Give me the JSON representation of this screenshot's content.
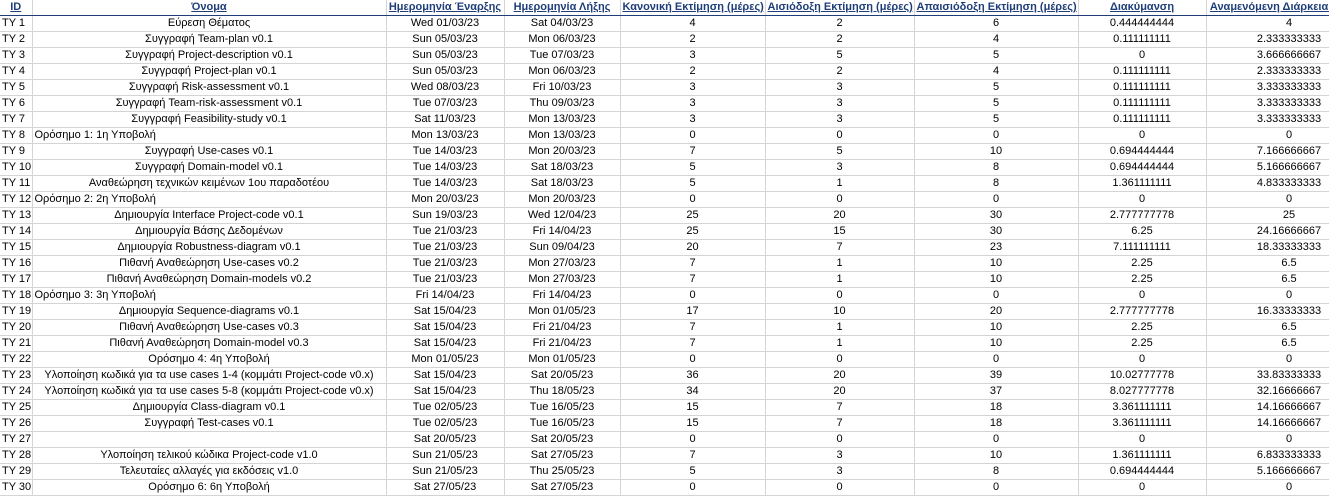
{
  "columns": [
    "ID",
    "Όνομα",
    "Ημερομηνία Έναρξης",
    "Ημερομηνία Λήξης",
    "Κανονική Εκτίμηση (μέρες)",
    "Αισιόδοξη Εκτίμηση (μέρες)",
    "Απαισιόδοξη Εκτίμηση (μέρες)",
    "Διακύμανση",
    "Αναμενόμενη Διάρκεια (μέρες)"
  ],
  "rows": [
    {
      "id": "TY 1",
      "name": "Εύρεση Θέματος",
      "start": "Wed 01/03/23",
      "end": "Sat 04/03/23",
      "normal": "4",
      "optimistic": "2",
      "pessimistic": "6",
      "variance": "0.444444444",
      "expected": "4"
    },
    {
      "id": "TY 2",
      "name": "Συγγραφή Team-plan v0.1",
      "start": "Sun 05/03/23",
      "end": "Mon 06/03/23",
      "normal": "2",
      "optimistic": "2",
      "pessimistic": "4",
      "variance": "0.111111111",
      "expected": "2.333333333"
    },
    {
      "id": "TY 3",
      "name": "Συγγραφή Project-description v0.1",
      "start": "Sun 05/03/23",
      "end": "Tue 07/03/23",
      "normal": "3",
      "optimistic": "5",
      "pessimistic": "5",
      "variance": "0",
      "expected": "3.666666667"
    },
    {
      "id": "TY 4",
      "name": "Συγγραφή Project-plan v0.1",
      "start": "Sun 05/03/23",
      "end": "Mon 06/03/23",
      "normal": "2",
      "optimistic": "2",
      "pessimistic": "4",
      "variance": "0.111111111",
      "expected": "2.333333333"
    },
    {
      "id": "TY 5",
      "name": "Συγγραφή Risk-assessment v0.1",
      "start": "Wed 08/03/23",
      "end": "Fri 10/03/23",
      "normal": "3",
      "optimistic": "3",
      "pessimistic": "5",
      "variance": "0.111111111",
      "expected": "3.333333333"
    },
    {
      "id": "TY 6",
      "name": "Συγγραφή Team-risk-assessment v0.1",
      "start": "Tue 07/03/23",
      "end": "Thu 09/03/23",
      "normal": "3",
      "optimistic": "3",
      "pessimistic": "5",
      "variance": "0.111111111",
      "expected": "3.333333333"
    },
    {
      "id": "TY 7",
      "name": "Συγγραφή Feasibility-study v0.1",
      "start": "Sat 11/03/23",
      "end": "Mon 13/03/23",
      "normal": "3",
      "optimistic": "3",
      "pessimistic": "5",
      "variance": "0.111111111",
      "expected": "3.333333333"
    },
    {
      "id": "TY 8",
      "name": "Ορόσημο 1: 1η Υποβολή",
      "start": "Mon 13/03/23",
      "end": "Mon 13/03/23",
      "normal": "0",
      "optimistic": "0",
      "pessimistic": "0",
      "variance": "0",
      "expected": "0",
      "align": "left"
    },
    {
      "id": "TY 9",
      "name": "Συγγραφή Use-cases v0.1",
      "start": "Tue 14/03/23",
      "end": "Mon 20/03/23",
      "normal": "7",
      "optimistic": "5",
      "pessimistic": "10",
      "variance": "0.694444444",
      "expected": "7.166666667"
    },
    {
      "id": "TY 10",
      "name": "Συγγραφή Domain-model v0.1",
      "start": "Tue 14/03/23",
      "end": "Sat 18/03/23",
      "normal": "5",
      "optimistic": "3",
      "pessimistic": "8",
      "variance": "0.694444444",
      "expected": "5.166666667"
    },
    {
      "id": "TY 11",
      "name": "Αναθεώρηση τεχνικών κειμένων 1ου παραδοτέου",
      "start": "Tue 14/03/23",
      "end": "Sat 18/03/23",
      "normal": "5",
      "optimistic": "1",
      "pessimistic": "8",
      "variance": "1.361111111",
      "expected": "4.833333333"
    },
    {
      "id": "TY 12",
      "name": "Ορόσημο 2: 2η Υποβολή",
      "start": "Mon 20/03/23",
      "end": "Mon 20/03/23",
      "normal": "0",
      "optimistic": "0",
      "pessimistic": "0",
      "variance": "0",
      "expected": "0",
      "align": "left"
    },
    {
      "id": "TY 13",
      "name": "Δημιουργία Interface Project-code v0.1",
      "start": "Sun 19/03/23",
      "end": "Wed 12/04/23",
      "normal": "25",
      "optimistic": "20",
      "pessimistic": "30",
      "variance": "2.777777778",
      "expected": "25"
    },
    {
      "id": "TY 14",
      "name": "Δημιουργία Βάσης Δεδομένων",
      "start": "Tue 21/03/23",
      "end": "Fri 14/04/23",
      "normal": "25",
      "optimistic": "15",
      "pessimistic": "30",
      "variance": "6.25",
      "expected": "24.16666667"
    },
    {
      "id": "TY 15",
      "name": "Δημιουργία Robustness-diagram v0.1",
      "start": "Tue 21/03/23",
      "end": "Sun 09/04/23",
      "normal": "20",
      "optimistic": "7",
      "pessimistic": "23",
      "variance": "7.111111111",
      "expected": "18.33333333"
    },
    {
      "id": "TY 16",
      "name": "Πιθανή Αναθεώρηση Use-cases v0.2",
      "start": "Tue 21/03/23",
      "end": "Mon 27/03/23",
      "normal": "7",
      "optimistic": "1",
      "pessimistic": "10",
      "variance": "2.25",
      "expected": "6.5"
    },
    {
      "id": "TY 17",
      "name": "Πιθανή Αναθεώρηση Domain-models v0.2",
      "start": "Tue 21/03/23",
      "end": "Mon 27/03/23",
      "normal": "7",
      "optimistic": "1",
      "pessimistic": "10",
      "variance": "2.25",
      "expected": "6.5"
    },
    {
      "id": "TY 18",
      "name": "Ορόσημο 3: 3η Υποβολή",
      "start": "Fri 14/04/23",
      "end": "Fri 14/04/23",
      "normal": "0",
      "optimistic": "0",
      "pessimistic": "0",
      "variance": "0",
      "expected": "0",
      "align": "left"
    },
    {
      "id": "TY 19",
      "name": "Δημιουργία Sequence-diagrams v0.1",
      "start": "Sat 15/04/23",
      "end": "Mon 01/05/23",
      "normal": "17",
      "optimistic": "10",
      "pessimistic": "20",
      "variance": "2.777777778",
      "expected": "16.33333333"
    },
    {
      "id": "TY 20",
      "name": "Πιθανή Αναθεώρηση Use-cases v0.3",
      "start": "Sat 15/04/23",
      "end": "Fri 21/04/23",
      "normal": "7",
      "optimistic": "1",
      "pessimistic": "10",
      "variance": "2.25",
      "expected": "6.5"
    },
    {
      "id": "TY 21",
      "name": "Πιθανή Αναθεώρηση Domain-model v0.3",
      "start": "Sat 15/04/23",
      "end": "Fri 21/04/23",
      "normal": "7",
      "optimistic": "1",
      "pessimistic": "10",
      "variance": "2.25",
      "expected": "6.5"
    },
    {
      "id": "TY 22",
      "name": "Ορόσημο 4: 4η Υποβολή",
      "start": "Mon 01/05/23",
      "end": "Mon 01/05/23",
      "normal": "0",
      "optimistic": "0",
      "pessimistic": "0",
      "variance": "0",
      "expected": "0"
    },
    {
      "id": "TY 23",
      "name": "Υλοποίηση κωδικά για τα use cases 1-4 (κομμάτι Project-code v0.x)",
      "start": "Sat 15/04/23",
      "end": "Sat 20/05/23",
      "normal": "36",
      "optimistic": "20",
      "pessimistic": "39",
      "variance": "10.02777778",
      "expected": "33.83333333"
    },
    {
      "id": "TY 24",
      "name": "Υλοποίηση κωδικά για τα use cases 5-8 (κομμάτι Project-code v0.x)",
      "start": "Sat 15/04/23",
      "end": "Thu 18/05/23",
      "normal": "34",
      "optimistic": "20",
      "pessimistic": "37",
      "variance": "8.027777778",
      "expected": "32.16666667"
    },
    {
      "id": "TY 25",
      "name": "Δημιουργία Class-diagram v0.1",
      "start": "Tue 02/05/23",
      "end": "Tue 16/05/23",
      "normal": "15",
      "optimistic": "7",
      "pessimistic": "18",
      "variance": "3.361111111",
      "expected": "14.16666667"
    },
    {
      "id": "TY 26",
      "name": "Συγγραφή Test-cases v0.1",
      "start": "Tue 02/05/23",
      "end": "Tue 16/05/23",
      "normal": "15",
      "optimistic": "7",
      "pessimistic": "18",
      "variance": "3.361111111",
      "expected": "14.16666667"
    },
    {
      "id": "TY 27",
      "name": "",
      "start": "Sat 20/05/23",
      "end": "Sat 20/05/23",
      "normal": "0",
      "optimistic": "0",
      "pessimistic": "0",
      "variance": "0",
      "expected": "0"
    },
    {
      "id": "TY 28",
      "name": "Υλοποίηση τελικού κώδικα Project-code v1.0",
      "start": "Sun 21/05/23",
      "end": "Sat 27/05/23",
      "normal": "7",
      "optimistic": "3",
      "pessimistic": "10",
      "variance": "1.361111111",
      "expected": "6.833333333"
    },
    {
      "id": "TY 29",
      "name": "Τελευταίες αλλαγές για εκδόσεις v1.0",
      "start": "Sun 21/05/23",
      "end": "Thu 25/05/23",
      "normal": "5",
      "optimistic": "3",
      "pessimistic": "8",
      "variance": "0.694444444",
      "expected": "5.166666667"
    },
    {
      "id": "TY 30",
      "name": "Ορόσημο 6: 6η Υποβολή",
      "start": "Sat 27/05/23",
      "end": "Sat 27/05/23",
      "normal": "0",
      "optimistic": "0",
      "pessimistic": "0",
      "variance": "0",
      "expected": "0"
    }
  ]
}
